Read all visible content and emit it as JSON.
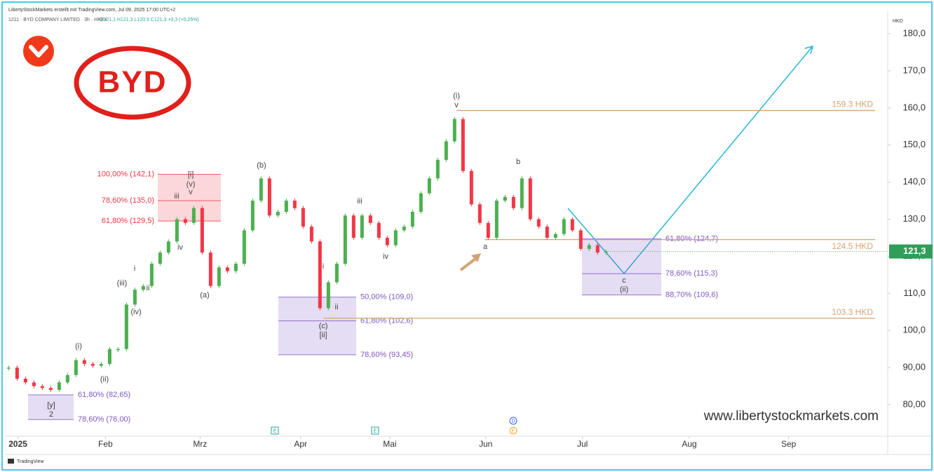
{
  "header": {
    "title": "LibertyStockMarkets erstellt mit TradingView.com, Jul 09, 2025 17:00 UTC+2",
    "symbol": "1211 · BYD COMPANY LIMITED · 3h · HKEX",
    "ohlc": "O121,1 H121,3 L120,5 C121,3 +0,3 (+0,25%)"
  },
  "logo": "BYD",
  "watermark": "www.libertystockmarkets.com",
  "footer": "TradingView",
  "currency": "HKD",
  "events": [
    "E",
    "E",
    "D",
    "E"
  ],
  "chart_data": {
    "type": "candlestick",
    "up_color": "#4caf50",
    "down_color": "#f23645",
    "values": [
      90,
      87,
      86,
      85,
      84.5,
      84,
      86,
      88,
      92,
      91,
      90.5,
      91,
      95,
      95,
      107,
      111,
      112,
      118,
      121,
      124,
      130,
      129,
      133,
      121,
      112,
      117,
      116,
      118,
      127,
      135,
      141,
      131,
      132,
      135,
      133,
      128,
      124,
      106,
      113,
      118,
      131,
      125,
      131,
      129,
      125,
      123,
      127,
      128,
      132,
      137,
      141,
      146,
      151,
      157,
      143,
      134,
      129,
      125,
      135,
      136,
      133,
      141,
      130,
      128,
      125,
      126,
      130,
      127,
      122,
      123,
      121,
      121.3
    ],
    "last_price": {
      "value": 121.3,
      "label": "121,3"
    },
    "xlim": [
      -0.2,
      104.4
    ],
    "xticks": [
      {
        "value": 1.1,
        "label": "2025"
      },
      {
        "value": 11.5,
        "label": "Feb"
      },
      {
        "value": 22.75,
        "label": "Mrz"
      },
      {
        "value": 34.7,
        "label": "Apr"
      },
      {
        "value": 45.3,
        "label": "Mai"
      },
      {
        "value": 56.7,
        "label": "Jun"
      },
      {
        "value": 68.2,
        "label": "Jul"
      },
      {
        "value": 80.9,
        "label": "Aug"
      },
      {
        "value": 92.7,
        "label": "Sep"
      }
    ],
    "ylim": [
      71.5,
      185.3
    ],
    "yticks": [
      {
        "value": 80,
        "label": "80,00"
      },
      {
        "value": 90,
        "label": "90,00"
      },
      {
        "value": 100,
        "label": "100,0"
      },
      {
        "value": 110,
        "label": "110,0"
      },
      {
        "value": 120,
        "label": "120,0"
      },
      {
        "value": 130,
        "label": "130,0"
      },
      {
        "value": 140,
        "label": "140,0"
      },
      {
        "value": 150,
        "label": "150,0"
      },
      {
        "value": 160,
        "label": "160,0"
      },
      {
        "value": 170,
        "label": "170,0"
      },
      {
        "value": 180,
        "label": "180,0"
      }
    ],
    "levels": {
      "color": "#d4a373",
      "items": [
        {
          "value": 159.3,
          "label": "159.3 HKD"
        },
        {
          "value": 124.5,
          "label": "124.5 HKD"
        },
        {
          "value": 103.3,
          "label": "103.3 HKD"
        }
      ]
    },
    "fib_zones": [
      {
        "color": "#f23645",
        "levels": [
          {
            "value": 142.1,
            "label": "100,00% (142,1)"
          },
          {
            "value": 135.0,
            "label": "78,60% (135,0)"
          },
          {
            "value": 129.5,
            "label": "61,80% (129,5)"
          }
        ]
      },
      {
        "color": "#7e57c2",
        "levels": [
          {
            "value": 109.0,
            "label": "50,00% (109,0)"
          },
          {
            "value": 102.6,
            "label": "61,80% (102,6)"
          },
          {
            "value": 93.45,
            "label": "78,60% (93,45)"
          }
        ]
      },
      {
        "color": "#7e57c2",
        "levels": [
          {
            "value": 124.7,
            "label": "61,80% (124,7)"
          },
          {
            "value": 115.3,
            "label": "78,60% (115,3)"
          },
          {
            "value": 109.6,
            "label": "88,70% (109,6)"
          }
        ]
      },
      {
        "color": "#7e57c2",
        "levels": [
          {
            "value": 82.65,
            "label": "61,80% (82,65)"
          },
          {
            "value": 76.0,
            "label": "78,60% (76,00)"
          }
        ]
      }
    ],
    "wave_labels": [
      "(i)",
      "(ii)",
      "(iii)",
      "(iv)",
      "i",
      "ii",
      "iii",
      "iv",
      "[i]",
      "(v)",
      "v",
      "(a)",
      "(b)",
      "i",
      "ii",
      "(c)",
      "[ii]",
      "iii",
      "iv",
      "(i)",
      "v",
      "a",
      "b",
      "c",
      "(ii)",
      "[y]",
      "2"
    ]
  }
}
